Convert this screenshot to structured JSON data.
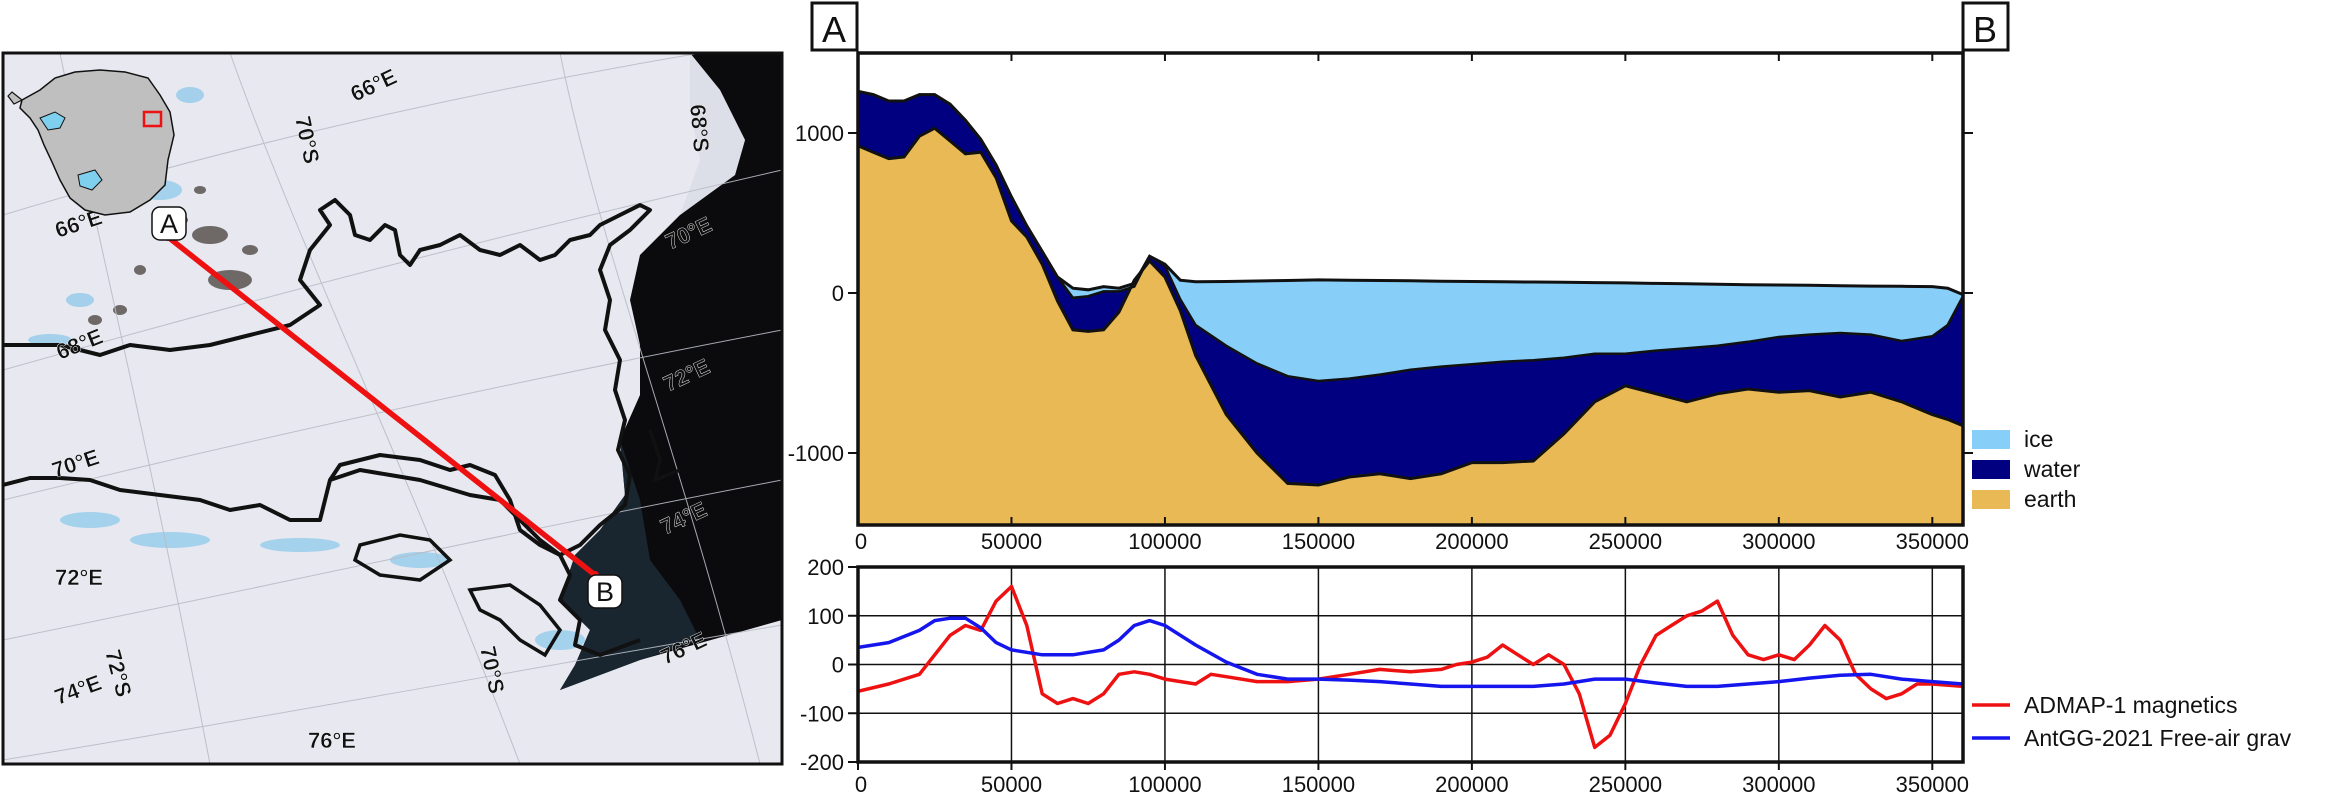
{
  "map": {
    "profile_start_label": "A",
    "profile_end_label": "B",
    "graticule_labels": [
      "66°E",
      "70°S",
      "68°S",
      "66°E",
      "70°E",
      "68°E",
      "72°E",
      "70°E",
      "74°E",
      "72°E",
      "76°E",
      "74°E",
      "72°S",
      "70°S",
      "76°E"
    ],
    "colors": {
      "profile_line": "#ee1111",
      "grounding_line": "#111111",
      "ocean": "#0b0b0d",
      "ice": "#e7e8f0",
      "blue_ice": "#8ec9ea"
    }
  },
  "inset": {
    "colors": {
      "continent": "#bfbfbf",
      "ice_shelf": "#7fd0ee",
      "location_box": "#ee1111"
    }
  },
  "chart_data": [
    {
      "type": "area",
      "endpoint_labels": [
        "A",
        "B"
      ],
      "xlim": [
        0,
        360000
      ],
      "ylim": [
        -1450,
        1500
      ],
      "x_ticks": [
        0,
        50000,
        100000,
        150000,
        200000,
        250000,
        300000,
        350000
      ],
      "x_tick_labels": [
        "0",
        "50000",
        "100000",
        "150000",
        "200000",
        "250000",
        "300000",
        "350000"
      ],
      "y_ticks": [
        1000,
        0,
        -1000
      ],
      "y_tick_labels": [
        "1000",
        "0",
        "-1000"
      ],
      "grid": false,
      "legend": {
        "placement": "right-bottom-outside",
        "entries": [
          "ice",
          "water",
          "earth"
        ]
      },
      "x": [
        0,
        5000,
        10000,
        15000,
        20000,
        25000,
        30000,
        35000,
        40000,
        45000,
        50000,
        55000,
        60000,
        65000,
        70000,
        75000,
        80000,
        85000,
        90000,
        95000,
        100000,
        105000,
        110000,
        120000,
        130000,
        140000,
        150000,
        160000,
        170000,
        180000,
        190000,
        200000,
        210000,
        220000,
        230000,
        240000,
        250000,
        260000,
        270000,
        280000,
        290000,
        300000,
        310000,
        320000,
        330000,
        340000,
        350000,
        355000,
        360000
      ],
      "surface_elevation": [
        1260,
        1240,
        1200,
        1200,
        1240,
        1240,
        1180,
        1080,
        960,
        800,
        600,
        420,
        260,
        100,
        30,
        20,
        40,
        30,
        60,
        230,
        180,
        80,
        70,
        72,
        75,
        78,
        82,
        80,
        78,
        76,
        74,
        72,
        70,
        69,
        67,
        65,
        63,
        60,
        58,
        55,
        52,
        50,
        48,
        45,
        43,
        42,
        40,
        30,
        -10
      ],
      "ice_base": [
        1260,
        1240,
        1200,
        1200,
        1240,
        1240,
        1180,
        1080,
        960,
        800,
        600,
        420,
        260,
        100,
        -30,
        -20,
        10,
        10,
        40,
        230,
        170,
        -40,
        -200,
        -330,
        -440,
        -520,
        -550,
        -535,
        -510,
        -480,
        -460,
        -445,
        -430,
        -420,
        -405,
        -380,
        -380,
        -360,
        -345,
        -330,
        -305,
        -275,
        -260,
        -250,
        -260,
        -300,
        -270,
        -200,
        -20
      ],
      "bed_elevation": [
        920,
        880,
        840,
        850,
        980,
        1030,
        950,
        870,
        880,
        720,
        450,
        350,
        180,
        -50,
        -230,
        -240,
        -230,
        -120,
        80,
        200,
        100,
        -110,
        -390,
        -760,
        -1000,
        -1190,
        -1200,
        -1150,
        -1130,
        -1160,
        -1130,
        -1060,
        -1060,
        -1050,
        -880,
        -680,
        -580,
        -630,
        -680,
        -630,
        -600,
        -620,
        -610,
        -650,
        -620,
        -680,
        -760,
        -790,
        -830
      ],
      "series": [
        {
          "name": "ice",
          "color": "#87cef8"
        },
        {
          "name": "water",
          "color": "#000080"
        },
        {
          "name": "earth",
          "color": "#e8b954"
        }
      ]
    },
    {
      "type": "line",
      "xlim": [
        0,
        360000
      ],
      "ylim": [
        -200,
        200
      ],
      "x_ticks": [
        0,
        50000,
        100000,
        150000,
        200000,
        250000,
        300000,
        350000
      ],
      "x_tick_labels": [
        "0",
        "50000",
        "100000",
        "150000",
        "200000",
        "250000",
        "300000",
        "350000"
      ],
      "y_ticks": [
        200,
        100,
        0,
        -100,
        -200
      ],
      "y_tick_labels": [
        "200",
        "100",
        "0",
        "-100",
        "-200"
      ],
      "grid": true,
      "legend": {
        "placement": "right-bottom-outside"
      },
      "series": [
        {
          "name": "ADMAP-1 magnetics",
          "color": "#ee1111",
          "x": [
            0,
            10000,
            20000,
            30000,
            35000,
            40000,
            45000,
            50000,
            55000,
            60000,
            65000,
            70000,
            75000,
            80000,
            85000,
            90000,
            95000,
            100000,
            110000,
            115000,
            120000,
            130000,
            140000,
            150000,
            160000,
            170000,
            180000,
            190000,
            195000,
            200000,
            205000,
            210000,
            215000,
            220000,
            225000,
            230000,
            235000,
            240000,
            245000,
            250000,
            255000,
            260000,
            265000,
            270000,
            275000,
            280000,
            285000,
            290000,
            295000,
            300000,
            305000,
            310000,
            315000,
            320000,
            325000,
            330000,
            335000,
            340000,
            345000,
            350000,
            360000
          ],
          "values": [
            -55,
            -40,
            -20,
            60,
            80,
            70,
            130,
            160,
            80,
            -60,
            -80,
            -70,
            -80,
            -60,
            -20,
            -15,
            -20,
            -30,
            -40,
            -20,
            -25,
            -35,
            -35,
            -30,
            -20,
            -10,
            -15,
            -10,
            0,
            5,
            15,
            40,
            20,
            0,
            20,
            0,
            -60,
            -170,
            -145,
            -80,
            0,
            60,
            80,
            100,
            110,
            130,
            60,
            20,
            10,
            20,
            10,
            40,
            80,
            50,
            -20,
            -50,
            -70,
            -60,
            -40,
            -40,
            -45
          ]
        },
        {
          "name": "AntGG-2021 Free-air grav",
          "color": "#1515ee",
          "x": [
            0,
            10000,
            20000,
            25000,
            30000,
            35000,
            40000,
            45000,
            50000,
            60000,
            70000,
            80000,
            85000,
            90000,
            95000,
            100000,
            110000,
            120000,
            130000,
            140000,
            150000,
            160000,
            170000,
            180000,
            190000,
            200000,
            210000,
            220000,
            230000,
            240000,
            250000,
            260000,
            270000,
            280000,
            290000,
            300000,
            310000,
            320000,
            330000,
            340000,
            350000,
            360000
          ],
          "values": [
            35,
            45,
            70,
            90,
            95,
            95,
            75,
            45,
            30,
            20,
            20,
            30,
            50,
            80,
            90,
            80,
            40,
            5,
            -20,
            -30,
            -30,
            -32,
            -35,
            -40,
            -45,
            -45,
            -45,
            -45,
            -40,
            -30,
            -30,
            -38,
            -45,
            -45,
            -40,
            -35,
            -28,
            -22,
            -20,
            -30,
            -35,
            -40
          ]
        }
      ]
    }
  ]
}
